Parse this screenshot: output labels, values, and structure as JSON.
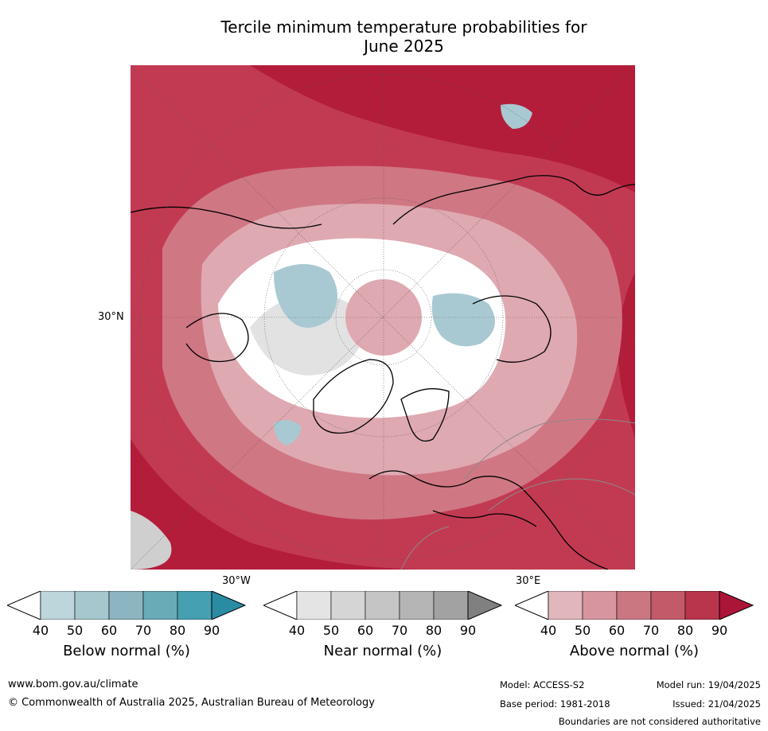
{
  "title": {
    "line1": "Tercile minimum temperature probabilities for",
    "line2": "June 2025"
  },
  "map": {
    "lat_label": "30°N",
    "lon_labels": {
      "west": "30°W",
      "east": "30°E"
    },
    "colors": {
      "ocean_warm": "#c23a52",
      "deep_warm": "#b31d3a",
      "mid_warm": "#d07784",
      "pale_warm": "#dfa9b1",
      "near_white": "#ffffff",
      "near_grey": "#e2e2e2",
      "below_blue": "#a9c9d2",
      "coast": "#000000",
      "border": "#8a8a8a"
    }
  },
  "legends": [
    {
      "caption": "Below normal (%)",
      "ticks": [
        "40",
        "50",
        "60",
        "70",
        "80",
        "90"
      ],
      "colors": [
        "#ffffff",
        "#bdd6dc",
        "#a6c7ce",
        "#8bb5c1",
        "#6aabb8",
        "#45a0b1",
        "#2a8ca3"
      ]
    },
    {
      "caption": "Near normal (%)",
      "ticks": [
        "40",
        "50",
        "60",
        "70",
        "80",
        "90"
      ],
      "colors": [
        "#ffffff",
        "#e4e4e4",
        "#d5d5d5",
        "#c5c5c5",
        "#b5b5b5",
        "#a2a2a2",
        "#808080"
      ]
    },
    {
      "caption": "Above normal (%)",
      "ticks": [
        "40",
        "50",
        "60",
        "70",
        "80",
        "90"
      ],
      "colors": [
        "#ffffff",
        "#e2b6bd",
        "#d7969f",
        "#cb7782",
        "#c25a69",
        "#b9354c",
        "#ab1538"
      ]
    }
  ],
  "footer": {
    "website": "www.bom.gov.au/climate",
    "copyright": "© Commonwealth of Australia 2025, Australian Bureau of Meteorology",
    "model": "Model: ACCESS-S2",
    "model_run": "Model run: 19/04/2025",
    "base_period": "Base period: 1981-2018",
    "issued": "Issued: 21/04/2025",
    "disclaimer": "Boundaries are not considered authoritative"
  }
}
